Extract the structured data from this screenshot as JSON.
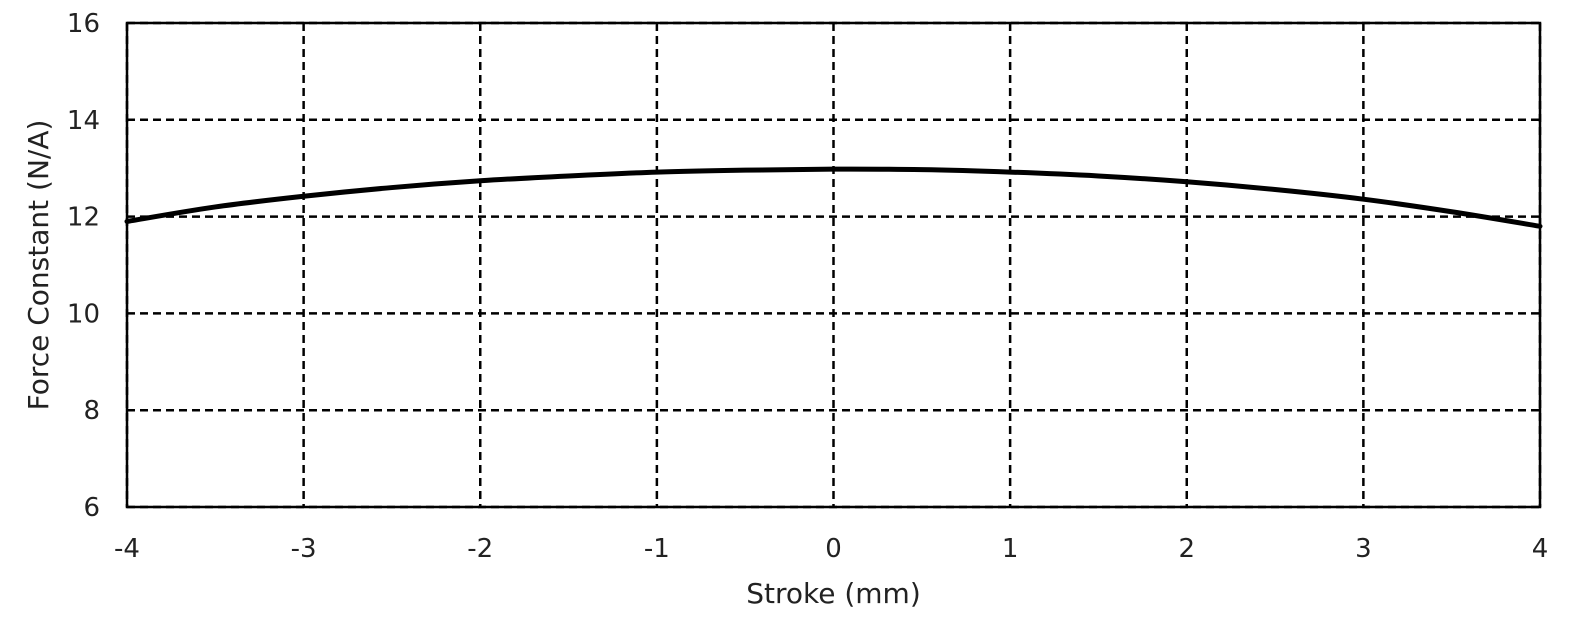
{
  "chart_data": {
    "type": "line",
    "title": "",
    "xlabel": "Stroke (mm)",
    "ylabel": "Force Constant (N/A)",
    "xlim": [
      -4,
      4
    ],
    "ylim": [
      6,
      16
    ],
    "xticks": [
      -4,
      -3,
      -2,
      -1,
      0,
      1,
      2,
      3,
      4
    ],
    "yticks": [
      6,
      8,
      10,
      12,
      14,
      16
    ],
    "grid": true,
    "grid_style": "dashed",
    "series": [
      {
        "color": "#000000",
        "x": [
          -4,
          -3.5,
          -3,
          -2.5,
          -2,
          -1.5,
          -1,
          -0.5,
          0,
          0.5,
          1,
          1.5,
          2,
          2.5,
          3,
          3.5,
          4
        ],
        "y": [
          11.9,
          12.2,
          12.42,
          12.6,
          12.74,
          12.84,
          12.92,
          12.96,
          12.98,
          12.97,
          12.92,
          12.84,
          12.72,
          12.56,
          12.36,
          12.1,
          11.8
        ]
      }
    ]
  }
}
